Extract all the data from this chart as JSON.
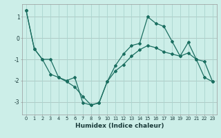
{
  "xlabel": "Humidex (Indice chaleur)",
  "background_color": "#cceee8",
  "grid_color": "#aad4ce",
  "line_color": "#1a6e60",
  "red_line_color": "#cc8888",
  "xlim": [
    -0.5,
    23.5
  ],
  "ylim": [
    -3.6,
    1.6
  ],
  "yticks": [
    -3,
    -2,
    -1,
    0,
    1
  ],
  "xticks": [
    0,
    1,
    2,
    3,
    4,
    5,
    6,
    7,
    8,
    9,
    10,
    11,
    12,
    13,
    14,
    15,
    16,
    17,
    18,
    19,
    20,
    21,
    22,
    23
  ],
  "line1_x": [
    0,
    1,
    2,
    3,
    4,
    5,
    6,
    7,
    8,
    9,
    10,
    11,
    12,
    13,
    14,
    15,
    16,
    17,
    18,
    19,
    20,
    21,
    22,
    23
  ],
  "line1_y": [
    1.3,
    -0.5,
    -1.0,
    -1.0,
    -1.85,
    -2.0,
    -1.85,
    -3.05,
    -3.15,
    -3.05,
    -2.05,
    -1.55,
    -1.25,
    -0.85,
    -0.55,
    -0.35,
    -0.45,
    -0.65,
    -0.75,
    -0.85,
    -0.7,
    -1.0,
    -1.85,
    -2.05
  ],
  "line2_x": [
    0,
    1,
    2,
    3,
    4,
    5,
    6,
    7,
    8,
    9,
    10,
    11,
    12,
    13,
    14,
    15,
    16,
    17,
    18,
    19,
    20,
    21,
    22,
    23
  ],
  "line2_y": [
    1.3,
    -0.5,
    -1.0,
    -1.7,
    -1.85,
    -2.05,
    -2.3,
    -2.75,
    -3.15,
    -3.05,
    -2.05,
    -1.3,
    -0.75,
    -0.35,
    -0.25,
    1.0,
    0.7,
    0.55,
    -0.15,
    -0.85,
    -0.2,
    -1.0,
    -1.1,
    -2.05
  ]
}
